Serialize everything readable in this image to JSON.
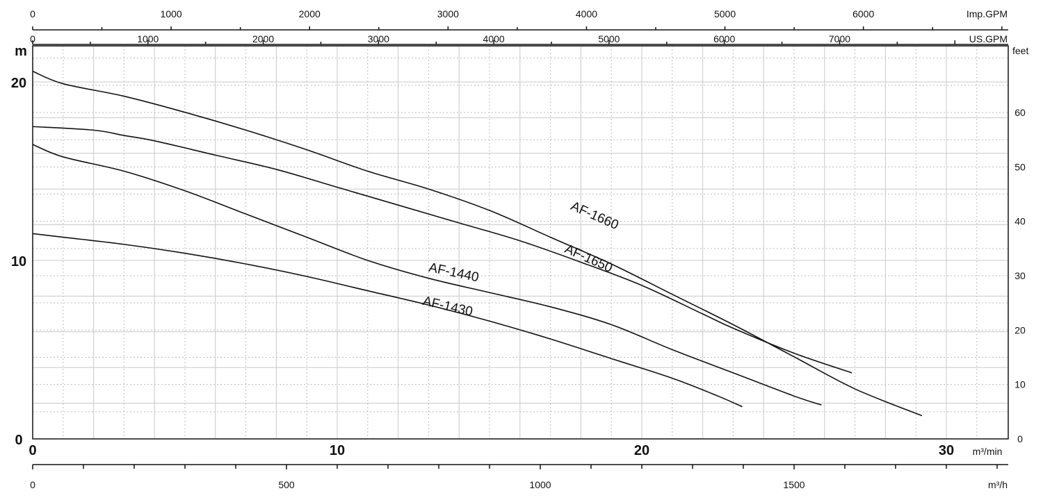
{
  "chart_data": {
    "type": "line",
    "title": "",
    "x_units": {
      "primary": "m³/min",
      "imp_gpm": "Imp.GPM",
      "us_gpm": "US.GPM",
      "m3h": "m³/h"
    },
    "y_units": {
      "left": "m",
      "right": "feet"
    },
    "xlim": [
      0,
      32
    ],
    "ylim": [
      0,
      22
    ],
    "x_ticks": [
      "0",
      "10",
      "20",
      "30"
    ],
    "y_left_ticks": [
      "0",
      "10",
      "20"
    ],
    "y_right_ticks": [
      "0",
      "10",
      "20",
      "30",
      "40",
      "50",
      "60"
    ],
    "imp_gpm_ticks": [
      "0",
      "1000",
      "2000",
      "3000",
      "4000",
      "5000",
      "6000"
    ],
    "us_gpm_ticks": [
      "0",
      "1000",
      "2000",
      "3000",
      "4000",
      "5000",
      "6000",
      "7000"
    ],
    "m3h_ticks": [
      "0",
      "500",
      "1000",
      "1500"
    ],
    "series": [
      {
        "name": "AF-1660",
        "points": [
          [
            0,
            20.6
          ],
          [
            1,
            19.9
          ],
          [
            3,
            19.2
          ],
          [
            5,
            18.3
          ],
          [
            7,
            17.3
          ],
          [
            9,
            16.2
          ],
          [
            11,
            15.0
          ],
          [
            13,
            14.0
          ],
          [
            15,
            12.8
          ],
          [
            17,
            11.3
          ],
          [
            19,
            9.8
          ],
          [
            21,
            8.1
          ],
          [
            23,
            6.4
          ],
          [
            25,
            4.6
          ],
          [
            27,
            2.8
          ],
          [
            29.2,
            1.3
          ]
        ]
      },
      {
        "name": "AF-1650",
        "points": [
          [
            0,
            17.5
          ],
          [
            2,
            17.3
          ],
          [
            3,
            17.0
          ],
          [
            4,
            16.7
          ],
          [
            6,
            15.9
          ],
          [
            8,
            15.1
          ],
          [
            10,
            14.1
          ],
          [
            12,
            13.1
          ],
          [
            14,
            12.1
          ],
          [
            16,
            11.1
          ],
          [
            18,
            9.9
          ],
          [
            20,
            8.6
          ],
          [
            22,
            7.0
          ],
          [
            23,
            6.2
          ],
          [
            25,
            4.8
          ],
          [
            26.9,
            3.7
          ]
        ]
      },
      {
        "name": "AF-1440",
        "points": [
          [
            0,
            16.5
          ],
          [
            1,
            15.8
          ],
          [
            3,
            15.0
          ],
          [
            5,
            13.9
          ],
          [
            7,
            12.6
          ],
          [
            9,
            11.3
          ],
          [
            11,
            10.0
          ],
          [
            13,
            9.0
          ],
          [
            15,
            8.2
          ],
          [
            17,
            7.4
          ],
          [
            19,
            6.4
          ],
          [
            21,
            5.0
          ],
          [
            23,
            3.7
          ],
          [
            25,
            2.4
          ],
          [
            25.9,
            1.9
          ]
        ]
      },
      {
        "name": "AF-1430",
        "points": [
          [
            0,
            11.5
          ],
          [
            1,
            11.3
          ],
          [
            3,
            10.9
          ],
          [
            5,
            10.4
          ],
          [
            7,
            9.8
          ],
          [
            9,
            9.1
          ],
          [
            11,
            8.3
          ],
          [
            13,
            7.5
          ],
          [
            15,
            6.6
          ],
          [
            17,
            5.6
          ],
          [
            19,
            4.5
          ],
          [
            21,
            3.4
          ],
          [
            22.5,
            2.4
          ],
          [
            23.3,
            1.8
          ]
        ]
      }
    ]
  }
}
